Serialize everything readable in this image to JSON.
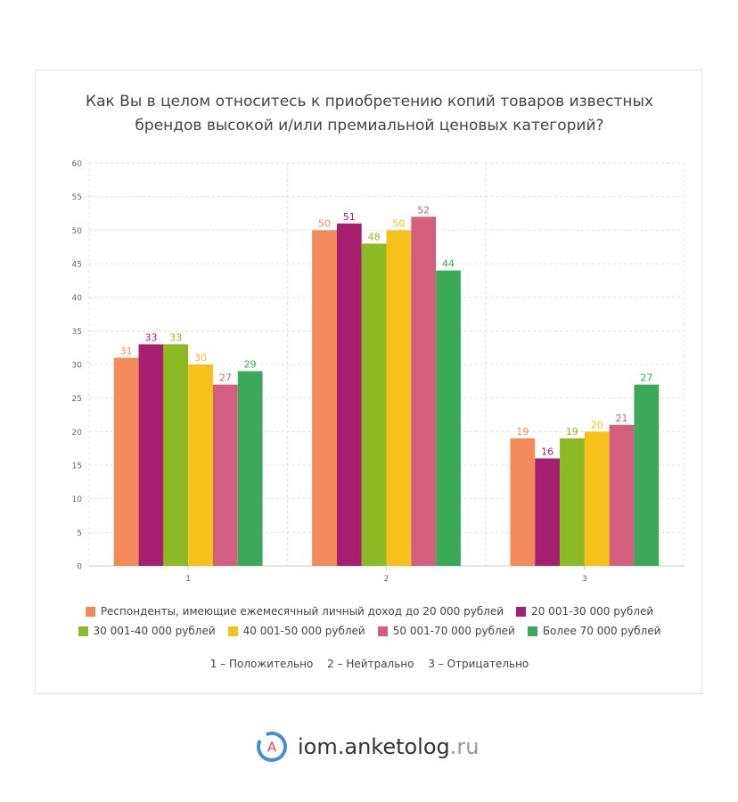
{
  "chart_data": {
    "type": "bar",
    "title_line1": "Как Вы в целом относитесь к приобретению копий товаров известных",
    "title_line2": "брендов высокой и/или премиальной ценовых категорий?",
    "categories": [
      "1",
      "2",
      "3"
    ],
    "ylim": [
      0,
      60
    ],
    "yticks": [
      0,
      5,
      10,
      15,
      20,
      25,
      30,
      35,
      40,
      45,
      50,
      55,
      60
    ],
    "grid": true,
    "legend_position": "bottom",
    "series": [
      {
        "name": "Респонденты, имеющие ежемесячный личный доход до 20 000 рублей",
        "color": "#f28a5c",
        "values": [
          31,
          50,
          19
        ]
      },
      {
        "name": "20 001-30 000 рублей",
        "color": "#a6206f",
        "values": [
          33,
          51,
          16
        ]
      },
      {
        "name": "30 001-40 000 рублей",
        "color": "#8cba24",
        "values": [
          33,
          48,
          19
        ]
      },
      {
        "name": "40 001-50 000 рублей",
        "color": "#f7c11b",
        "values": [
          30,
          50,
          20
        ]
      },
      {
        "name": "50 001-70 000 рублей",
        "color": "#d35f7f",
        "values": [
          27,
          52,
          21
        ]
      },
      {
        "name": "Более 70 000 рублей",
        "color": "#3aaa59",
        "values": [
          29,
          44,
          27
        ]
      }
    ]
  },
  "note": {
    "item1": "1 – Положительно",
    "item2": "2 – Нейтрально",
    "item3": "3 – Отрицательно"
  },
  "logo": {
    "letter": "A",
    "text": "iom.anketolog",
    "tld": ".ru",
    "colors": {
      "ring": "#4a90c8",
      "letter": "#e04848"
    }
  }
}
